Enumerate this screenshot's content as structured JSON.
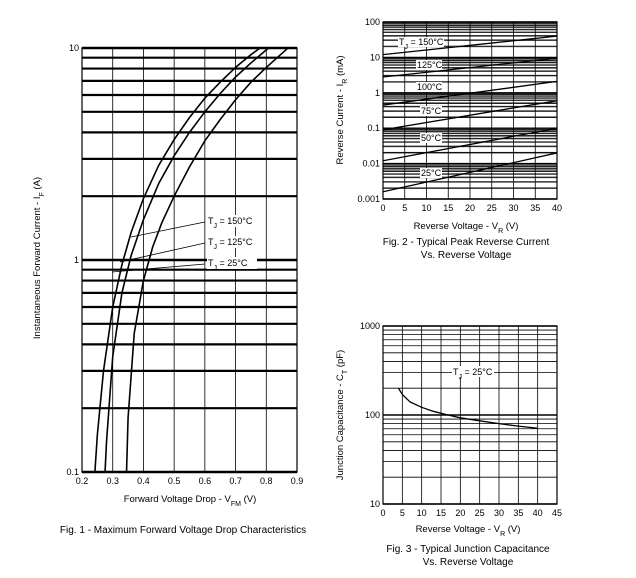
{
  "chart_data": [
    {
      "type": "line",
      "caption": "Fig. 1 - Maximum Forward Voltage Drop Characteristics",
      "xlabel": "Forward Voltage Drop - V",
      "xlabel_sub": "FM",
      "xlabel_unit": "(V)",
      "ylabel": "Instantaneous Forward Current - I",
      "ylabel_sub": "F",
      "ylabel_unit": "(A)",
      "xlim": [
        0.2,
        0.9
      ],
      "ylim": [
        0.1,
        10
      ],
      "yscale": "log",
      "x_ticks": [
        "0.2",
        "0.3",
        "0.4",
        "0.5",
        "0.6",
        "0.7",
        "0.8",
        "0.9"
      ],
      "y_ticks": [
        "0.1",
        "1",
        "10"
      ],
      "grid": true,
      "series": [
        {
          "name": "T_J = 150°C",
          "x": [
            0.242,
            0.25,
            0.27,
            0.3,
            0.33,
            0.36,
            0.4,
            0.45,
            0.5,
            0.55,
            0.6,
            0.65,
            0.7,
            0.75,
            0.8,
            0.85,
            0.865
          ],
          "y": [
            0.1,
            0.15,
            0.3,
            0.6,
            0.95,
            1.35,
            1.95,
            2.8,
            3.7,
            4.7,
            5.8,
            6.9,
            8.1,
            9.3,
            10.5,
            11.8,
            12.2
          ]
        },
        {
          "name": "T_J = 125°C",
          "x": [
            0.275,
            0.28,
            0.3,
            0.33,
            0.36,
            0.4,
            0.45,
            0.5,
            0.55,
            0.6,
            0.65,
            0.7,
            0.75,
            0.8,
            0.85,
            0.88
          ],
          "y": [
            0.1,
            0.14,
            0.35,
            0.7,
            1.05,
            1.55,
            2.3,
            3.1,
            4.0,
            5.0,
            6.1,
            7.3,
            8.5,
            9.8,
            11.1,
            12.0
          ]
        },
        {
          "name": "T_J = 25°C",
          "x": [
            0.345,
            0.35,
            0.37,
            0.4,
            0.43,
            0.46,
            0.5,
            0.55,
            0.6,
            0.65,
            0.7,
            0.75,
            0.8,
            0.85,
            0.89
          ],
          "y": [
            0.1,
            0.18,
            0.45,
            0.8,
            1.15,
            1.5,
            2.0,
            2.75,
            3.65,
            4.6,
            5.7,
            6.9,
            8.1,
            9.4,
            10.6
          ]
        }
      ],
      "annotations": [
        {
          "text": "T",
          "sub": "J",
          "rest": "=  150°C"
        },
        {
          "text": "T",
          "sub": "J",
          "rest": "= 125°C"
        },
        {
          "text": "T",
          "sub": "J",
          "rest": "=   25°C"
        }
      ]
    },
    {
      "type": "line",
      "caption_line1": "Fig. 2 - Typical Peak Reverse Current",
      "caption_line2": "Vs. Reverse Voltage",
      "xlabel": "Reverse Voltage - V",
      "xlabel_sub": "R",
      "xlabel_unit": "(V)",
      "ylabel": "Reverse Current - I",
      "ylabel_sub": "R",
      "ylabel_unit": "(mA)",
      "xlim": [
        0,
        40
      ],
      "ylim": [
        0.001,
        100
      ],
      "yscale": "log",
      "x_ticks": [
        "0",
        "5",
        "10",
        "15",
        "20",
        "25",
        "30",
        "35",
        "40"
      ],
      "y_ticks": [
        "0.001",
        "0.01",
        "0.1",
        "1",
        "10",
        "100"
      ],
      "grid": true,
      "series": [
        {
          "name": "T_J = 150°C",
          "x": [
            0,
            40
          ],
          "y": [
            12,
            40
          ]
        },
        {
          "name": "125°C",
          "x": [
            0,
            40
          ],
          "y": [
            2.8,
            9.5
          ]
        },
        {
          "name": "100°C",
          "x": [
            0,
            40
          ],
          "y": [
            0.45,
            2.1
          ]
        },
        {
          "name": "75°C",
          "x": [
            0,
            40
          ],
          "y": [
            0.09,
            0.6
          ]
        },
        {
          "name": "50°C",
          "x": [
            0,
            40
          ],
          "y": [
            0.012,
            0.1
          ]
        },
        {
          "name": "25°C",
          "x": [
            0,
            40
          ],
          "y": [
            0.0016,
            0.02
          ]
        }
      ],
      "annotations": [
        {
          "text": "T",
          "sub": "J",
          "rest": "= 150°C"
        },
        {
          "text": "125°C"
        },
        {
          "text": "100°C"
        },
        {
          "text": "75°C"
        },
        {
          "text": "50°C"
        },
        {
          "text": "25°C"
        }
      ]
    },
    {
      "type": "line",
      "caption_line1": "Fig. 3 - Typical Junction Capacitance",
      "caption_line2": "Vs. Reverse  Voltage",
      "xlabel": "Reverse Voltage - V",
      "xlabel_sub": "R",
      "xlabel_unit": "(V)",
      "ylabel": "Junction Capacitance - C",
      "ylabel_sub": "T",
      "ylabel_unit": "(pF)",
      "xlim": [
        0,
        45
      ],
      "ylim": [
        10,
        1000
      ],
      "yscale": "log",
      "x_ticks": [
        "0",
        "5",
        "10",
        "15",
        "20",
        "25",
        "30",
        "35",
        "40",
        "45"
      ],
      "y_ticks": [
        "10",
        "100",
        "1000"
      ],
      "grid": true,
      "series": [
        {
          "name": "T_J = 25°C",
          "x": [
            4,
            5,
            7,
            10,
            13,
            16,
            20,
            25,
            30,
            35,
            40
          ],
          "y": [
            200,
            170,
            140,
            122,
            110,
            102,
            93,
            86,
            80,
            75,
            71
          ]
        }
      ],
      "annotations": [
        {
          "text": "T",
          "sub": "J",
          "rest": "= 25°C"
        }
      ]
    }
  ]
}
